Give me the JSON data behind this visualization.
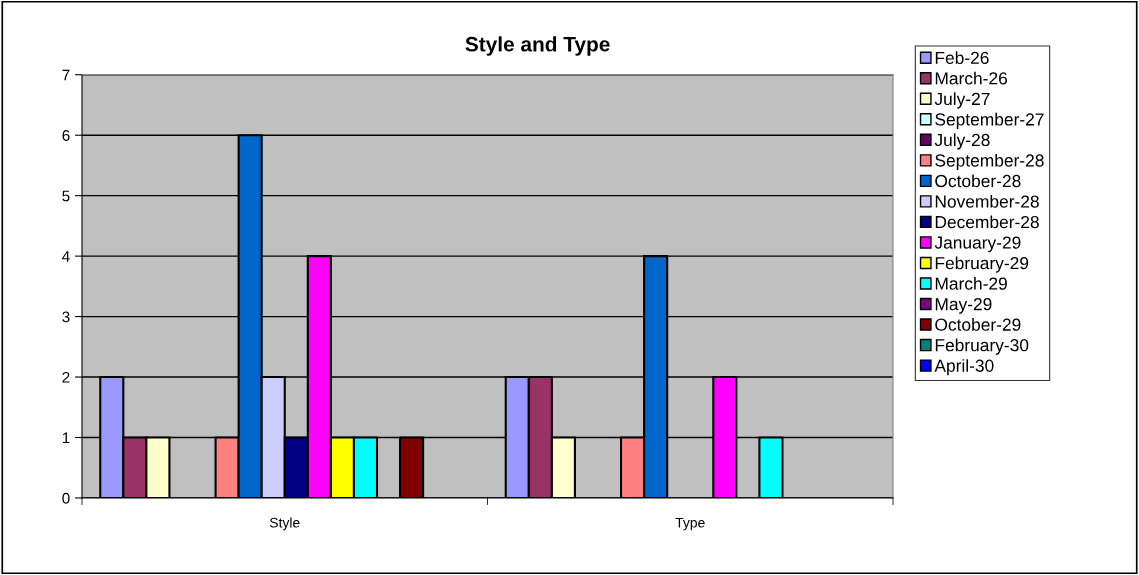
{
  "chart_data": {
    "type": "bar",
    "title": "Style and Type",
    "categories": [
      "Style",
      "Type"
    ],
    "ylim": [
      0,
      7
    ],
    "yticks": [
      0,
      1,
      2,
      3,
      4,
      5,
      6,
      7
    ],
    "grid": "y",
    "legend": "right",
    "series": [
      {
        "name": "Feb-26",
        "color": "#9999ff",
        "values": [
          2,
          2
        ]
      },
      {
        "name": "March-26",
        "color": "#993366",
        "values": [
          1,
          2
        ]
      },
      {
        "name": "July-27",
        "color": "#ffffcc",
        "values": [
          1,
          1
        ]
      },
      {
        "name": "September-27",
        "color": "#ccffff",
        "values": [
          null,
          null
        ]
      },
      {
        "name": "July-28",
        "color": "#660066",
        "values": [
          null,
          null
        ]
      },
      {
        "name": "September-28",
        "color": "#ff8080",
        "values": [
          1,
          1
        ]
      },
      {
        "name": "October-28",
        "color": "#0066cc",
        "values": [
          6,
          4
        ]
      },
      {
        "name": "November-28",
        "color": "#ccccff",
        "values": [
          2,
          null
        ]
      },
      {
        "name": "December-28",
        "color": "#000080",
        "values": [
          1,
          null
        ]
      },
      {
        "name": "January-29",
        "color": "#ff00ff",
        "values": [
          4,
          2
        ]
      },
      {
        "name": "February-29",
        "color": "#ffff00",
        "values": [
          1,
          null
        ]
      },
      {
        "name": "March-29",
        "color": "#00ffff",
        "values": [
          1,
          1
        ]
      },
      {
        "name": "May-29",
        "color": "#800080",
        "values": [
          null,
          null
        ]
      },
      {
        "name": "October-29",
        "color": "#800000",
        "values": [
          1,
          null
        ]
      },
      {
        "name": "February-30",
        "color": "#008080",
        "values": [
          null,
          null
        ]
      },
      {
        "name": "April-30",
        "color": "#0000ff",
        "values": [
          null,
          null
        ]
      }
    ]
  }
}
